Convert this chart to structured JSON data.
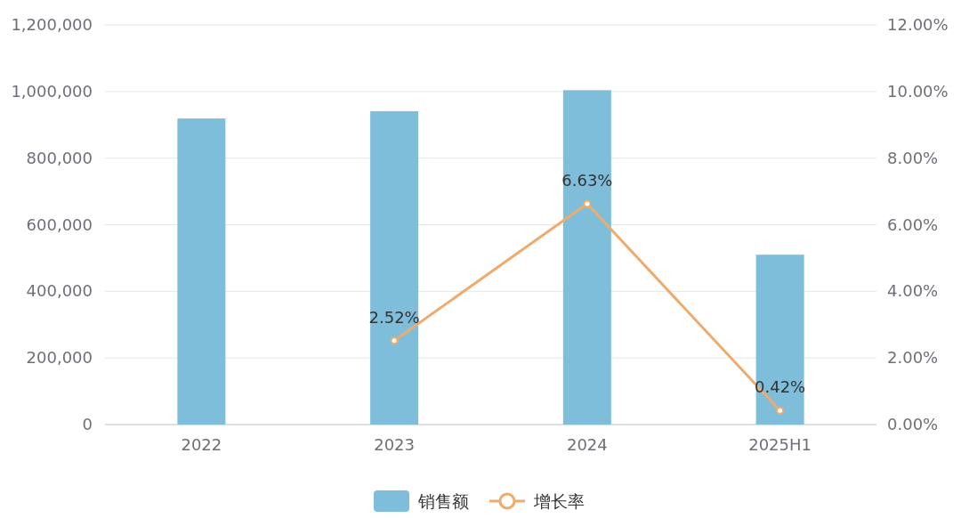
{
  "chart_data": {
    "type": "bar",
    "categories": [
      "2022",
      "2023",
      "2024",
      "2025H1"
    ],
    "series": [
      {
        "name": "销售额",
        "color": "#7fbedb",
        "values": [
          919000,
          941000,
          1004000,
          510000
        ]
      },
      {
        "name": "增长率",
        "type": "line",
        "axis": "y2",
        "color": "#eeab6d",
        "values": [
          null,
          2.52,
          6.63,
          0.42
        ],
        "value_labels": [
          null,
          "2.52%",
          "6.63%",
          "0.42%"
        ]
      }
    ],
    "ylim": [
      0,
      1200000
    ],
    "yticks": [
      {
        "value": 0,
        "label": "0"
      },
      {
        "value": 200000,
        "label": "200,000"
      },
      {
        "value": 400000,
        "label": "400,000"
      },
      {
        "value": 600000,
        "label": "600,000"
      },
      {
        "value": 800000,
        "label": "800,000"
      },
      {
        "value": 1000000,
        "label": "1,000,000"
      },
      {
        "value": 1200000,
        "label": "1,200,000"
      }
    ],
    "y2lim": [
      0,
      12
    ],
    "y2ticks": [
      {
        "value": 0,
        "label": "0.00%"
      },
      {
        "value": 2,
        "label": "2.00%"
      },
      {
        "value": 4,
        "label": "4.00%"
      },
      {
        "value": 6,
        "label": "6.00%"
      },
      {
        "value": 8,
        "label": "8.00%"
      },
      {
        "value": 10,
        "label": "10.00%"
      },
      {
        "value": 12,
        "label": "12.00%"
      }
    ],
    "grid": "y",
    "legend": "bottom",
    "marker": "circle"
  }
}
